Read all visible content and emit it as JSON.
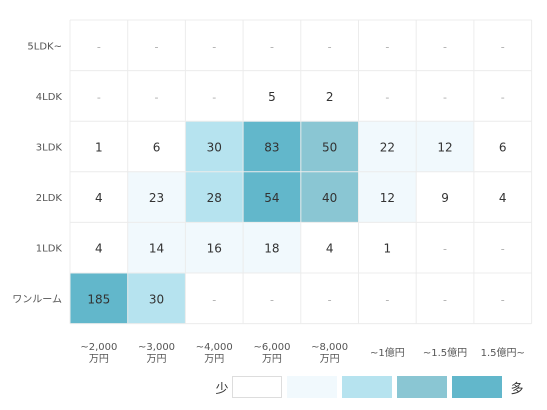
{
  "chart_data": {
    "type": "heatmap",
    "rows": [
      "5LDK~",
      "4LDK",
      "3LDK",
      "2LDK",
      "1LDK",
      "ワンルーム"
    ],
    "columns": [
      [
        "~2,000",
        "万円"
      ],
      [
        "~3,000",
        "万円"
      ],
      [
        "~4,000",
        "万円"
      ],
      [
        "~6,000",
        "万円"
      ],
      [
        "~8,000",
        "万円"
      ],
      [
        "~1億円"
      ],
      [
        "~1.5億円"
      ],
      [
        "1.5億円~"
      ]
    ],
    "values": [
      [
        null,
        null,
        null,
        null,
        null,
        null,
        null,
        null
      ],
      [
        null,
        null,
        null,
        5,
        2,
        null,
        null,
        null
      ],
      [
        1,
        6,
        30,
        83,
        50,
        22,
        12,
        6
      ],
      [
        4,
        23,
        28,
        54,
        40,
        12,
        9,
        4
      ],
      [
        4,
        14,
        16,
        18,
        4,
        1,
        null,
        null
      ],
      [
        185,
        30,
        null,
        null,
        null,
        null,
        null,
        null
      ]
    ],
    "empty_label": "-",
    "colors": [
      "#ffffff",
      "#f1f9fd",
      "#b6e3ef",
      "#8ac6d3",
      "#62b7cb"
    ],
    "grid_color": "#ececec"
  },
  "legend": {
    "low_label": "少",
    "high_label": "多",
    "colors": [
      "#ffffff",
      "#f1f9fd",
      "#b6e3ef",
      "#8ac6d3",
      "#62b7cb"
    ]
  }
}
